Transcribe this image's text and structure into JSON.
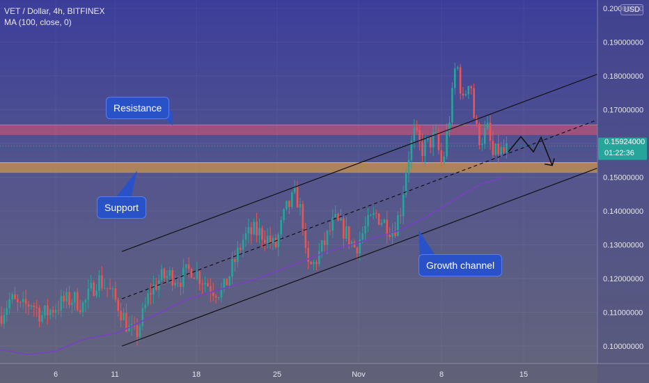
{
  "header": {
    "title": "VET / Dollar, 4h, BITFINEX",
    "indicator": "MA (100, close, 0)"
  },
  "currency": "USD",
  "price_tag": {
    "value": "0.15924000",
    "countdown": "01:22:36"
  },
  "annotations": {
    "resistance": "Resistance",
    "support": "Support",
    "growth_channel": "Growth channel"
  },
  "colors": {
    "up": "#26a69a",
    "down": "#ef5350",
    "ma": "#7b3fc4",
    "resistance_zone": "#e05570",
    "support_zone": "#e8a53a",
    "callout": "#2a52c8",
    "price_tag": "#26a69a"
  },
  "chart_data": {
    "type": "candlestick",
    "y_axis_labels": [
      "0.10000000",
      "0.11000000",
      "0.12000000",
      "0.13000000",
      "0.14000000",
      "0.15000000",
      "0.16000000",
      "0.17000000",
      "0.18000000",
      "0.19000000",
      "0.20000000"
    ],
    "x_axis_labels": [
      "6",
      "11",
      "18",
      "25",
      "Nov",
      "8",
      "15"
    ],
    "ylim": [
      0.096,
      0.2
    ],
    "last_price": 0.15924,
    "resistance_zone": [
      0.1625,
      0.1655
    ],
    "support_zone": [
      0.1513,
      0.1543
    ],
    "channel": {
      "upper": [
        [
          0.128,
          175
        ],
        [
          0.1805,
          858
        ]
      ],
      "middle": [
        [
          0.114,
          175
        ],
        [
          0.167,
          858
        ]
      ],
      "lower": [
        [
          0.1,
          175
        ],
        [
          0.1527,
          858
        ]
      ]
    },
    "projection": [
      0.1575,
      0.162,
      0.1575,
      0.1618,
      0.1535
    ],
    "anchors": [
      [
        0,
        0.109
      ],
      [
        15,
        0.114
      ],
      [
        30,
        0.111
      ],
      [
        45,
        0.113
      ],
      [
        60,
        0.109
      ],
      [
        75,
        0.111
      ],
      [
        90,
        0.113
      ],
      [
        105,
        0.114
      ],
      [
        120,
        0.112
      ],
      [
        140,
        0.12
      ],
      [
        155,
        0.117
      ],
      [
        170,
        0.112
      ],
      [
        185,
        0.105
      ],
      [
        195,
        0.103
      ],
      [
        205,
        0.109
      ],
      [
        215,
        0.116
      ],
      [
        230,
        0.12
      ],
      [
        245,
        0.121
      ],
      [
        260,
        0.12
      ],
      [
        275,
        0.123
      ],
      [
        290,
        0.12
      ],
      [
        305,
        0.117
      ],
      [
        320,
        0.116
      ],
      [
        335,
        0.124
      ],
      [
        350,
        0.132
      ],
      [
        365,
        0.134
      ],
      [
        380,
        0.133
      ],
      [
        395,
        0.129
      ],
      [
        410,
        0.14
      ],
      [
        425,
        0.145
      ],
      [
        435,
        0.137
      ],
      [
        440,
        0.123
      ],
      [
        450,
        0.124
      ],
      [
        465,
        0.13
      ],
      [
        480,
        0.137
      ],
      [
        495,
        0.134
      ],
      [
        510,
        0.129
      ],
      [
        525,
        0.135
      ],
      [
        540,
        0.139
      ],
      [
        555,
        0.136
      ],
      [
        565,
        0.134
      ],
      [
        575,
        0.14
      ],
      [
        585,
        0.155
      ],
      [
        595,
        0.163
      ],
      [
        605,
        0.158
      ],
      [
        615,
        0.16
      ],
      [
        625,
        0.162
      ],
      [
        635,
        0.153
      ],
      [
        642,
        0.163
      ],
      [
        648,
        0.171
      ],
      [
        655,
        0.185
      ],
      [
        665,
        0.172
      ],
      [
        675,
        0.181
      ],
      [
        682,
        0.165
      ],
      [
        690,
        0.161
      ],
      [
        700,
        0.164
      ],
      [
        708,
        0.156
      ],
      [
        716,
        0.158
      ],
      [
        724,
        0.157
      ],
      [
        730,
        0.159
      ]
    ],
    "ma": [
      [
        0,
        0.099
      ],
      [
        40,
        0.0975
      ],
      [
        80,
        0.0985
      ],
      [
        120,
        0.102
      ],
      [
        170,
        0.104
      ],
      [
        220,
        0.109
      ],
      [
        270,
        0.114
      ],
      [
        320,
        0.117
      ],
      [
        370,
        0.12
      ],
      [
        420,
        0.124
      ],
      [
        470,
        0.128
      ],
      [
        520,
        0.131
      ],
      [
        570,
        0.134
      ],
      [
        610,
        0.138
      ],
      [
        650,
        0.143
      ],
      [
        690,
        0.148
      ],
      [
        725,
        0.15
      ]
    ]
  }
}
